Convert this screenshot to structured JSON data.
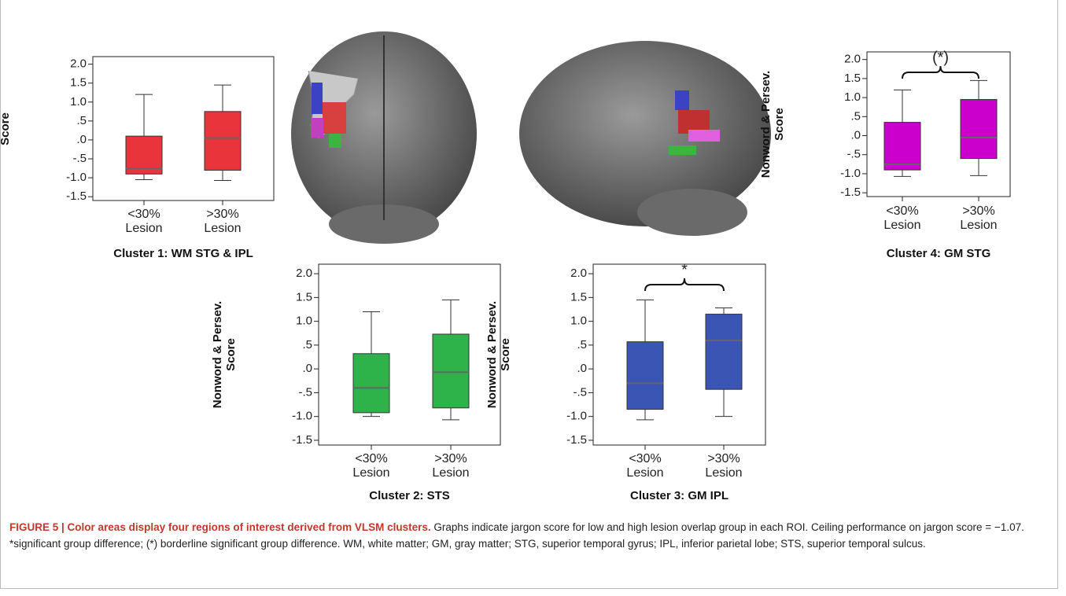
{
  "chart_data": [
    {
      "type": "box",
      "title": "Cluster 1: WM STG & IPL",
      "ylabel": "Nonword & Persev. Score",
      "color": "#e8343a",
      "categories": [
        "<30% Lesion",
        ">30% Lesion"
      ],
      "boxes": [
        {
          "min": -1.05,
          "q1": -0.9,
          "median": -0.75,
          "q3": 0.1,
          "max": 1.2
        },
        {
          "min": -1.07,
          "q1": -0.8,
          "median": 0.05,
          "q3": 0.75,
          "max": 1.45
        }
      ],
      "ylim": [
        -1.6,
        2.2
      ],
      "yticks": [
        {
          "value": 2.0,
          "label": "2.0"
        },
        {
          "value": 1.5,
          "label": "1.5"
        },
        {
          "value": 1.0,
          "label": "1.0"
        },
        {
          "value": 0.5,
          "label": ".5"
        },
        {
          "value": 0,
          "label": ".0"
        },
        {
          "value": -0.5,
          "label": "-.5"
        },
        {
          "value": -1.0,
          "label": "-1.0"
        },
        {
          "value": -1.5,
          "label": "-1.5"
        }
      ]
    },
    {
      "type": "box",
      "title": "Cluster 4: GM STG",
      "ylabel": "Nonword & Persev. Score",
      "color": "#cc00cc",
      "annotation": "(*)",
      "categories": [
        "<30% Lesion",
        ">30% Lesion"
      ],
      "boxes": [
        {
          "min": -1.07,
          "q1": -0.9,
          "median": -0.75,
          "q3": 0.35,
          "max": 1.2
        },
        {
          "min": -1.05,
          "q1": -0.6,
          "median": -0.05,
          "q3": 0.95,
          "max": 1.45
        }
      ],
      "ylim": [
        -1.6,
        2.2
      ],
      "yticks": [
        {
          "value": 2.0,
          "label": "2.0"
        },
        {
          "value": 1.5,
          "label": "1.5"
        },
        {
          "value": 1.0,
          "label": "1.0"
        },
        {
          "value": 0.5,
          "label": ".5"
        },
        {
          "value": 0,
          "label": ".0"
        },
        {
          "value": -0.5,
          "label": "-.5"
        },
        {
          "value": -1.0,
          "label": "-1.0"
        },
        {
          "value": -1.5,
          "label": "-1.5"
        }
      ]
    },
    {
      "type": "box",
      "title": "Cluster 2: STS",
      "ylabel": "Nonword & Persev. Score",
      "color": "#2db34a",
      "categories": [
        "<30% Lesion",
        ">30% Lesion"
      ],
      "boxes": [
        {
          "min": -1.0,
          "q1": -0.92,
          "median": -0.4,
          "q3": 0.32,
          "max": 1.2
        },
        {
          "min": -1.07,
          "q1": -0.82,
          "median": -0.07,
          "q3": 0.73,
          "max": 1.45
        }
      ],
      "ylim": [
        -1.6,
        2.2
      ],
      "yticks": [
        {
          "value": 2.0,
          "label": "2.0"
        },
        {
          "value": 1.5,
          "label": "1.5"
        },
        {
          "value": 1.0,
          "label": "1.0"
        },
        {
          "value": 0.5,
          "label": ".5"
        },
        {
          "value": 0,
          "label": ".0"
        },
        {
          "value": -0.5,
          "label": "-.5"
        },
        {
          "value": -1.0,
          "label": "-1.0"
        },
        {
          "value": -1.5,
          "label": "-1.5"
        }
      ]
    },
    {
      "type": "box",
      "title": "Cluster 3: GM IPL",
      "ylabel": "Nonword & Persev. Score",
      "color": "#3a55b4",
      "annotation": "*",
      "categories": [
        "<30% Lesion",
        ">30% Lesion"
      ],
      "boxes": [
        {
          "min": -1.07,
          "q1": -0.85,
          "median": -0.3,
          "q3": 0.57,
          "max": 1.45
        },
        {
          "min": -1.0,
          "q1": -0.43,
          "median": 0.6,
          "q3": 1.15,
          "max": 1.28
        }
      ],
      "ylim": [
        -1.6,
        2.2
      ],
      "yticks": [
        {
          "value": 2.0,
          "label": "2.0"
        },
        {
          "value": 1.5,
          "label": "1.5"
        },
        {
          "value": 1.0,
          "label": "1.0"
        },
        {
          "value": 0.5,
          "label": ".5"
        },
        {
          "value": 0,
          "label": ".0"
        },
        {
          "value": -0.5,
          "label": "-.5"
        },
        {
          "value": -1.0,
          "label": "-1.0"
        },
        {
          "value": -1.5,
          "label": "-1.5"
        }
      ]
    }
  ],
  "caption": {
    "label": "FIGURE 5 | Color areas display four regions of interest derived from VLSM clusters.",
    "text": "Graphs indicate jargon score for low and high lesion overlap group in each ROI. Ceiling performance on jargon score = −1.07. *significant group difference; (*) borderline significant group difference. WM, white matter; GM, gray matter; STG, superior temporal gyrus; IPL, inferior parietal lobe; STS, superior temporal sulcus."
  }
}
